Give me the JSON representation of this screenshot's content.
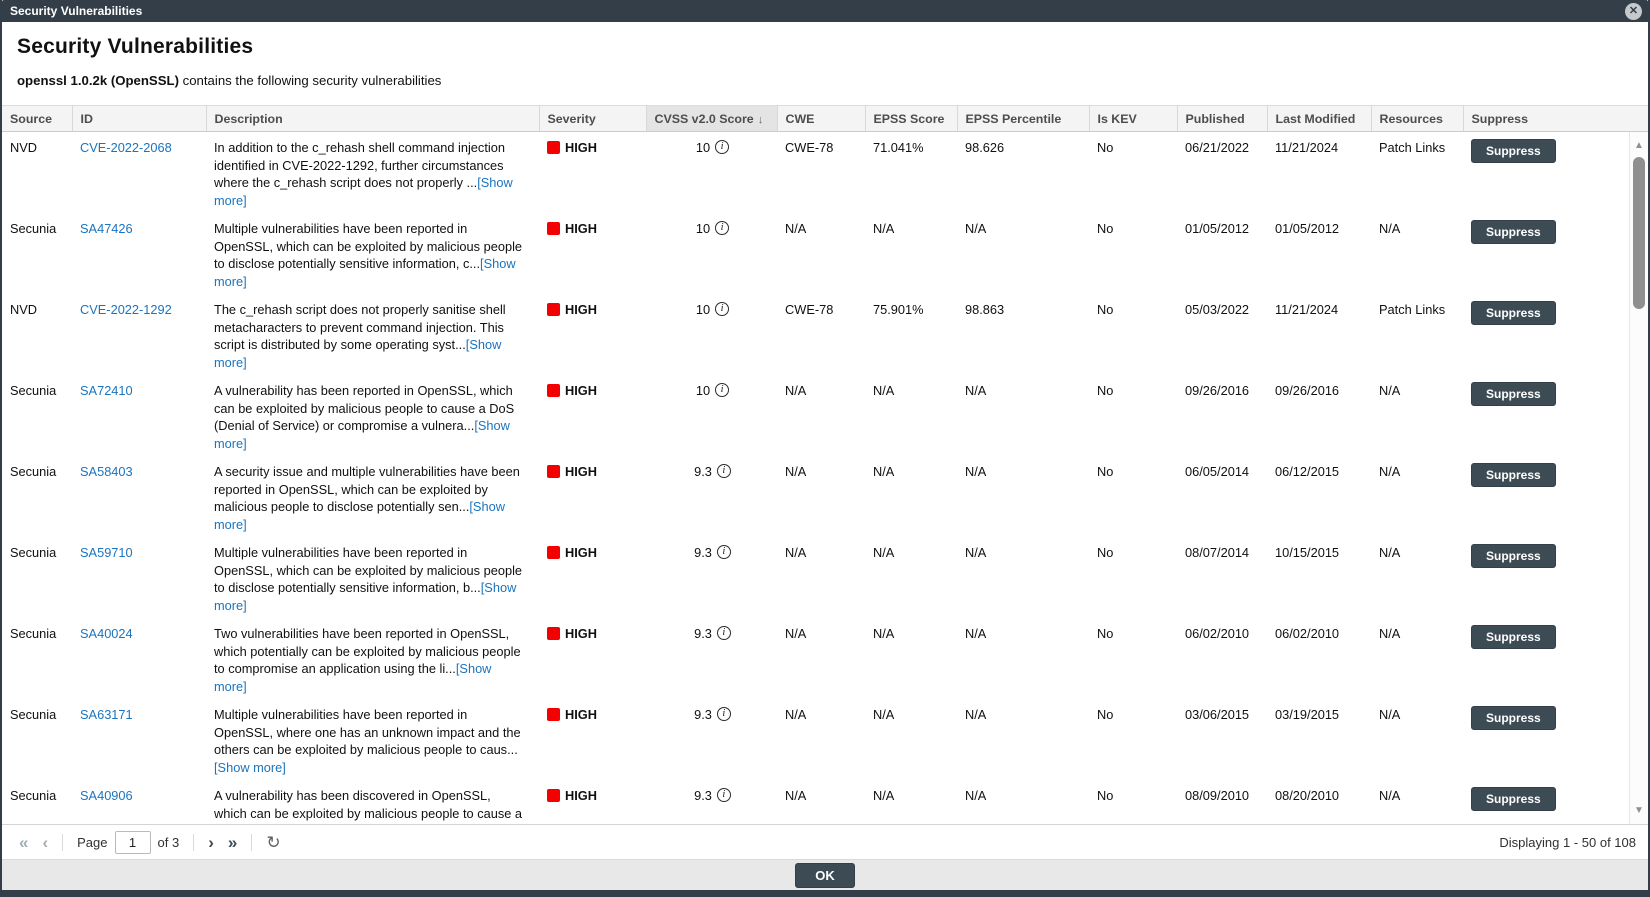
{
  "window": {
    "title": "Security Vulnerabilities"
  },
  "header": {
    "title": "Security Vulnerabilities",
    "subtitle_bold": "openssl 1.0.2k (OpenSSL)",
    "subtitle_rest": " contains the following security vulnerabilities"
  },
  "icons": {
    "close": "✕",
    "info": "i",
    "sort_desc": "↓",
    "first_page": "«",
    "prev_page": "‹",
    "next_page": "›",
    "last_page": "»",
    "refresh": "↻",
    "scroll_up": "▲",
    "scroll_down": "▼"
  },
  "colors": {
    "titlebar": "#333e48",
    "severity_high": "#f40000",
    "link_blue": "#1a74bf",
    "button_dark": "#3d4b55"
  },
  "table": {
    "columns": [
      "Source",
      "ID",
      "Description",
      "Severity",
      "CVSS v2.0 Score",
      "CWE",
      "EPSS Score",
      "EPSS Percentile",
      "Is KEV",
      "Published",
      "Last Modified",
      "Resources",
      "Suppress"
    ],
    "sorted_column": "CVSS v2.0 Score",
    "sort_direction": "descending",
    "show_more_label": "[Show more]",
    "suppress_label": "Suppress",
    "rows": [
      {
        "source": "NVD",
        "id": "CVE-2022-2068",
        "description": "In addition to the c_rehash shell command injection identified in CVE-2022-1292, further circumstances where the c_rehash script does not properly ...",
        "severity": "HIGH",
        "cvss": "10",
        "cwe": "CWE-78",
        "epss_score": "71.041%",
        "epss_percentile": "98.626",
        "is_kev": "No",
        "published": "06/21/2022",
        "last_modified": "11/21/2024",
        "resources": "Patch Links"
      },
      {
        "source": "Secunia",
        "id": "SA47426",
        "description": "Multiple vulnerabilities have been reported in OpenSSL, which can be exploited by malicious people to disclose potentially sensitive information, c...",
        "severity": "HIGH",
        "cvss": "10",
        "cwe": "N/A",
        "epss_score": "N/A",
        "epss_percentile": "N/A",
        "is_kev": "No",
        "published": "01/05/2012",
        "last_modified": "01/05/2012",
        "resources": "N/A"
      },
      {
        "source": "NVD",
        "id": "CVE-2022-1292",
        "description": "The c_rehash script does not properly sanitise shell metacharacters to prevent command injection. This script is distributed by some operating syst...",
        "severity": "HIGH",
        "cvss": "10",
        "cwe": "CWE-78",
        "epss_score": "75.901%",
        "epss_percentile": "98.863",
        "is_kev": "No",
        "published": "05/03/2022",
        "last_modified": "11/21/2024",
        "resources": "Patch Links"
      },
      {
        "source": "Secunia",
        "id": "SA72410",
        "description": "A vulnerability has been reported in OpenSSL, which can be exploited by malicious people to cause a DoS (Denial of Service) or compromise a vulnera...",
        "severity": "HIGH",
        "cvss": "10",
        "cwe": "N/A",
        "epss_score": "N/A",
        "epss_percentile": "N/A",
        "is_kev": "No",
        "published": "09/26/2016",
        "last_modified": "09/26/2016",
        "resources": "N/A"
      },
      {
        "source": "Secunia",
        "id": "SA58403",
        "description": "A security issue and multiple vulnerabilities have been reported in OpenSSL, which can be exploited by malicious people to disclose potentially sen...",
        "severity": "HIGH",
        "cvss": "9.3",
        "cwe": "N/A",
        "epss_score": "N/A",
        "epss_percentile": "N/A",
        "is_kev": "No",
        "published": "06/05/2014",
        "last_modified": "06/12/2015",
        "resources": "N/A"
      },
      {
        "source": "Secunia",
        "id": "SA59710",
        "description": "Multiple vulnerabilities have been reported in OpenSSL, which can be exploited by malicious people to disclose potentially sensitive information, b...",
        "severity": "HIGH",
        "cvss": "9.3",
        "cwe": "N/A",
        "epss_score": "N/A",
        "epss_percentile": "N/A",
        "is_kev": "No",
        "published": "08/07/2014",
        "last_modified": "10/15/2015",
        "resources": "N/A"
      },
      {
        "source": "Secunia",
        "id": "SA40024",
        "description": "Two vulnerabilities have been reported in OpenSSL, which potentially can be exploited by malicious people to compromise an application using the li...",
        "severity": "HIGH",
        "cvss": "9.3",
        "cwe": "N/A",
        "epss_score": "N/A",
        "epss_percentile": "N/A",
        "is_kev": "No",
        "published": "06/02/2010",
        "last_modified": "06/02/2010",
        "resources": "N/A"
      },
      {
        "source": "Secunia",
        "id": "SA63171",
        "description": "Multiple vulnerabilities have been reported in OpenSSL, where one has an unknown impact and the others can be exploited by malicious people to caus... ",
        "severity": "HIGH",
        "cvss": "9.3",
        "cwe": "N/A",
        "epss_score": "N/A",
        "epss_percentile": "N/A",
        "is_kev": "No",
        "published": "03/06/2015",
        "last_modified": "03/19/2015",
        "resources": "N/A"
      },
      {
        "source": "Secunia",
        "id": "SA40906",
        "description": "A vulnerability has been discovered in OpenSSL, which can be exploited by malicious people to cause a DoS (Denial of Service) and potentially compr...",
        "severity": "HIGH",
        "cvss": "9.3",
        "cwe": "N/A",
        "epss_score": "N/A",
        "epss_percentile": "N/A",
        "is_kev": "No",
        "published": "08/09/2010",
        "last_modified": "08/20/2010",
        "resources": "N/A"
      }
    ]
  },
  "pagination": {
    "page_label": "Page",
    "page_value": "1",
    "of_label": "of 3",
    "displaying": "Displaying 1 - 50 of 108"
  },
  "footer": {
    "ok_label": "OK"
  }
}
